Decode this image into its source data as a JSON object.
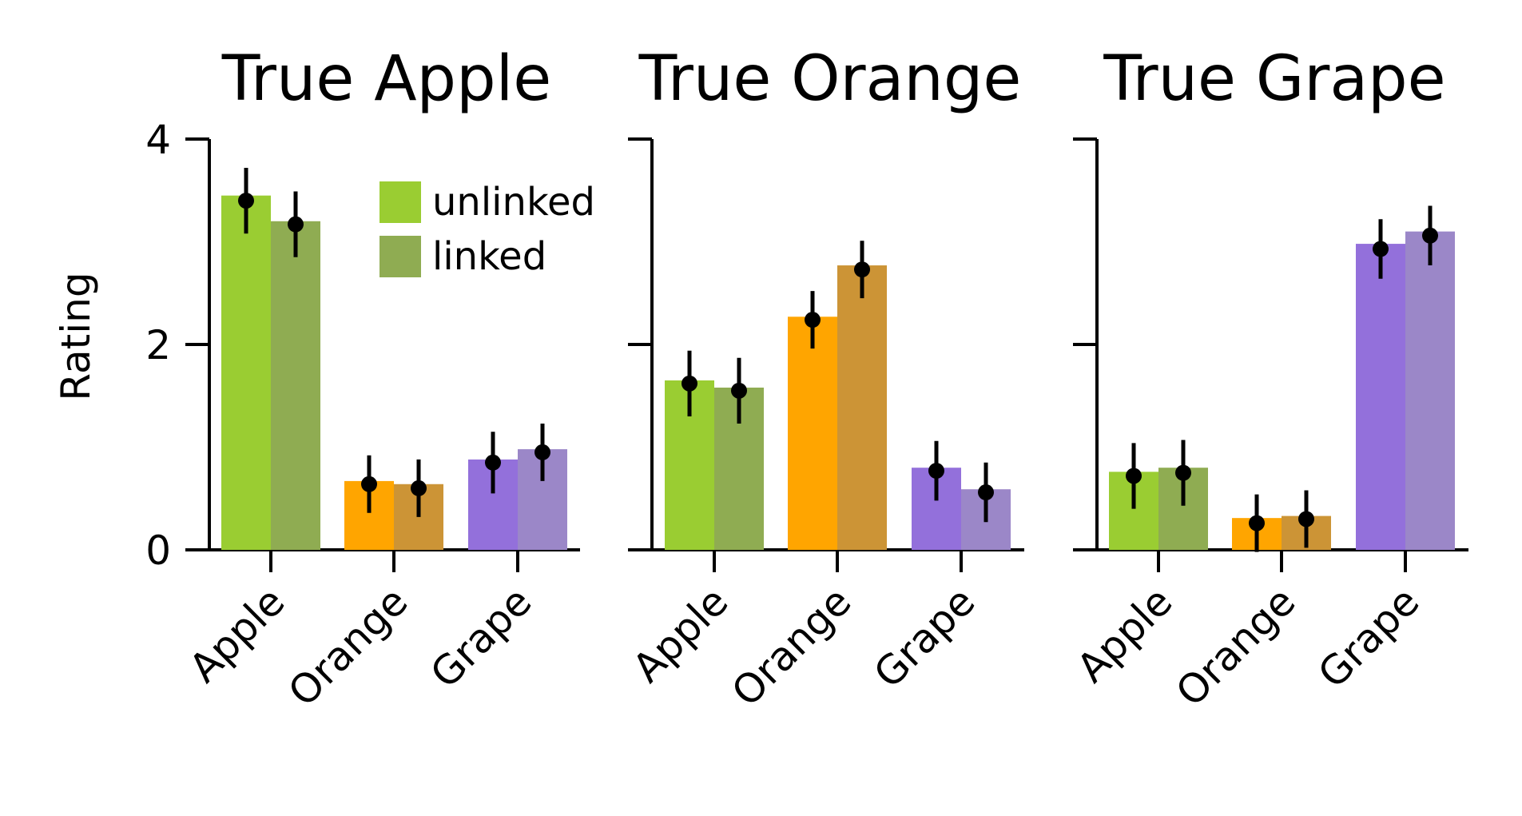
{
  "chart_data": {
    "type": "bar",
    "ylabel": "Rating",
    "ylim": [
      0,
      4
    ],
    "yticks": [
      "0",
      "2",
      "4"
    ],
    "categories": [
      "Apple",
      "Orange",
      "Grape"
    ],
    "conditions": [
      "unlinked",
      "linked"
    ],
    "legend": {
      "placement": "top-right of first panel",
      "entries": [
        {
          "label": "unlinked",
          "color": "#9acd32"
        },
        {
          "label": "linked",
          "color": "#8fac52"
        }
      ]
    },
    "colors": {
      "Apple": {
        "unlinked": "#9acd32",
        "linked": "#8fac52"
      },
      "Orange": {
        "unlinked": "#ffa500",
        "linked": "#cc9436"
      },
      "Grape": {
        "unlinked": "#9370db",
        "linked": "#9b87c8"
      }
    },
    "panels": [
      {
        "title": "True Apple",
        "series": [
          {
            "name": "unlinked",
            "values": [
              3.45,
              0.67,
              0.88
            ],
            "means": [
              3.4,
              0.64,
              0.85
            ],
            "errors": [
              0.32,
              0.28,
              0.3
            ]
          },
          {
            "name": "linked",
            "values": [
              3.2,
              0.64,
              0.98
            ],
            "means": [
              3.17,
              0.6,
              0.95
            ],
            "errors": [
              0.32,
              0.28,
              0.28
            ]
          }
        ]
      },
      {
        "title": "True Orange",
        "series": [
          {
            "name": "unlinked",
            "values": [
              1.65,
              2.27,
              0.8
            ],
            "means": [
              1.62,
              2.24,
              0.77
            ],
            "errors": [
              0.32,
              0.28,
              0.29
            ]
          },
          {
            "name": "linked",
            "values": [
              1.58,
              2.77,
              0.59
            ],
            "means": [
              1.55,
              2.73,
              0.56
            ],
            "errors": [
              0.32,
              0.28,
              0.29
            ]
          }
        ]
      },
      {
        "title": "True Grape",
        "series": [
          {
            "name": "unlinked",
            "values": [
              0.76,
              0.31,
              2.98
            ],
            "means": [
              0.72,
              0.26,
              2.93
            ],
            "errors": [
              0.32,
              0.28,
              0.29
            ]
          },
          {
            "name": "linked",
            "values": [
              0.8,
              0.33,
              3.1
            ],
            "means": [
              0.75,
              0.3,
              3.06
            ],
            "errors": [
              0.32,
              0.28,
              0.29
            ]
          }
        ]
      }
    ]
  }
}
